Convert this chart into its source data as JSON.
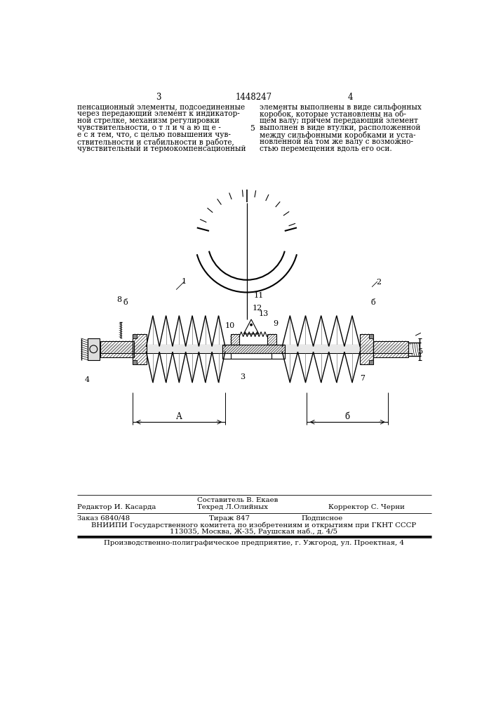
{
  "page_number": "1448247",
  "page_left": "3",
  "page_right": "4",
  "col1_text": "пенсационный элементы, подсоединенные\nчерез передающий элемент к индикатор-\nной стрелке, механизм регулировки\nчувствительности, о т л и ч а ю щ е -\nе с я тем, что, с целью повышения чув-\nствительности и стабильности в работе,\nчувствительный и термокомпенсационный",
  "col2_text": "элементы выполнены в виде сильфонных\nкоробок, которые установлены на об-\nщем валу; причем передающий элемент\nвыполнен в виде втулки, расположенной\nмежду сильфонными коробками и уста-\nновленной на том же валу с возможно-\nстью перемещения вдоль его оси.",
  "num5_label": "5",
  "footer1_left": "Редактор И. Касарда",
  "footer1_mid": "Составитель В. Екаев",
  "footer2_mid": "Техред Л.Олийных",
  "footer2_right": "Корректор С. Черни",
  "footer3_left": "Заказ 6840/48",
  "footer3_mid": "Тираж 847",
  "footer3_right": "Подписное",
  "footer4": "ВНИИПИ Государственного комитета по изобретениям и открытиям при ГКНТ СССР",
  "footer5": "113035, Москва, Ж-35, Раушская наб., д. 4/5",
  "footer6": "Производственно-полиграфическое предприятие, г. Ужгород, ул. Проектная, 4",
  "bg_color": "#ffffff",
  "text_color": "#000000"
}
